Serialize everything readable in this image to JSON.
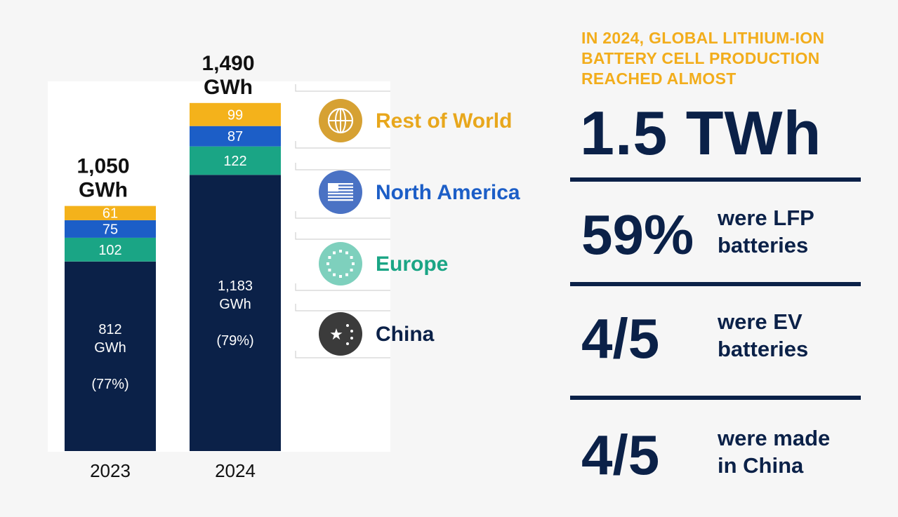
{
  "chart_data": {
    "type": "bar",
    "stacked": true,
    "categories": [
      "2023",
      "2024"
    ],
    "totals": [
      "1,050 GWh",
      "1,490 GWh"
    ],
    "series": [
      {
        "name": "China",
        "values": [
          812,
          1183
        ],
        "color": "#0b2148",
        "text_color": "#ffffff",
        "labels": [
          [
            "812",
            "GWh",
            "",
            "(77%)"
          ],
          [
            "1,183",
            "GWh",
            "",
            "(79%)"
          ]
        ]
      },
      {
        "name": "Europe",
        "values": [
          102,
          122
        ],
        "color": "#1aa585",
        "text_color": "#ffffff",
        "labels": [
          [
            "102"
          ],
          [
            "122"
          ]
        ]
      },
      {
        "name": "North America",
        "values": [
          75,
          87
        ],
        "color": "#1c5ec7",
        "text_color": "#ffffff",
        "labels": [
          [
            "75"
          ],
          [
            "87"
          ]
        ]
      },
      {
        "name": "Rest of World",
        "values": [
          61,
          99
        ],
        "color": "#f4b21b",
        "text_color": "#ffffff",
        "labels": [
          [
            "61"
          ],
          [
            "99"
          ]
        ]
      }
    ],
    "ylim": [
      0,
      1550
    ],
    "grid": false,
    "legend": {
      "position": "right",
      "order": [
        {
          "label": "Rest of World",
          "color": "#e8a71c",
          "icon": "globe-icon",
          "icon_color": "#d6a133"
        },
        {
          "label": "North America",
          "color": "#1c5ec7",
          "icon": "us-flag-icon",
          "icon_color": "#4a72c4"
        },
        {
          "label": "Europe",
          "color": "#1aa585",
          "icon": "eu-stars-icon",
          "icon_color": "#7ed0bd"
        },
        {
          "label": "China",
          "color": "#0b2148",
          "icon": "china-stars-icon",
          "icon_color": "#3b3b3b"
        }
      ]
    }
  },
  "summary": {
    "intro": "IN 2024, GLOBAL LITHIUM-ION BATTERY CELL PRODUCTION REACHED ALMOST",
    "headline": "1.5 TWh",
    "stats": [
      {
        "value": "59%",
        "line1": "were LFP",
        "line2": "batteries"
      },
      {
        "value": "4/5",
        "line1": "were EV",
        "line2": "batteries"
      },
      {
        "value": "4/5",
        "line1": "were made",
        "line2": "in China"
      }
    ]
  }
}
